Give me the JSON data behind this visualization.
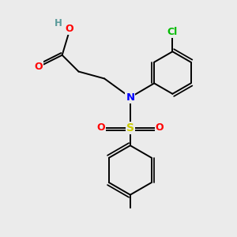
{
  "bg_color": "#ebebeb",
  "atom_colors": {
    "C": "#000000",
    "H": "#5a9a9a",
    "O": "#ff0000",
    "N": "#0000ff",
    "S": "#cccc00",
    "Cl": "#00bb00"
  },
  "bond_color": "#000000",
  "bond_width": 1.4,
  "figsize": [
    3.0,
    3.0
  ],
  "dpi": 100
}
